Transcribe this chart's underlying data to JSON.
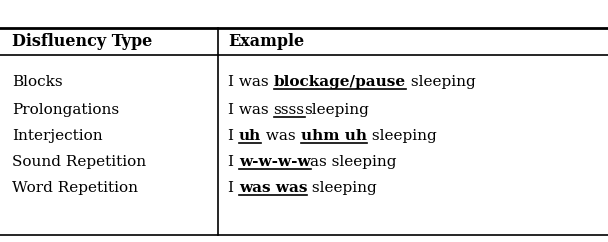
{
  "col1_header": "Disfluency Type",
  "col2_header": "Example",
  "rows": [
    {
      "type": "Blocks",
      "parts": [
        {
          "text": "I was ",
          "bold": false,
          "underline": false
        },
        {
          "text": "blockage/pause",
          "bold": true,
          "underline": true
        },
        {
          "text": " sleeping",
          "bold": false,
          "underline": false
        }
      ]
    },
    {
      "type": "Prolongations",
      "parts": [
        {
          "text": "I was ",
          "bold": false,
          "underline": false
        },
        {
          "text": "ssss",
          "bold": false,
          "underline": true
        },
        {
          "text": "sleeping",
          "bold": false,
          "underline": false
        }
      ]
    },
    {
      "type": "Interjection",
      "parts": [
        {
          "text": "I ",
          "bold": false,
          "underline": false
        },
        {
          "text": "uh",
          "bold": true,
          "underline": true
        },
        {
          "text": " was ",
          "bold": false,
          "underline": false
        },
        {
          "text": "uhm uh",
          "bold": true,
          "underline": true
        },
        {
          "text": " sleeping",
          "bold": false,
          "underline": false
        }
      ]
    },
    {
      "type": "Sound Repetition",
      "parts": [
        {
          "text": "I ",
          "bold": false,
          "underline": false
        },
        {
          "text": "w-w-w-w",
          "bold": true,
          "underline": true
        },
        {
          "text": "as sleeping",
          "bold": false,
          "underline": false
        }
      ]
    },
    {
      "type": "Word Repetition",
      "parts": [
        {
          "text": "I ",
          "bold": false,
          "underline": false
        },
        {
          "text": "was was",
          "bold": true,
          "underline": true
        },
        {
          "text": " sleeping",
          "bold": false,
          "underline": false
        }
      ]
    }
  ],
  "background_color": "#ffffff",
  "text_color": "#000000",
  "font_size": 11.0,
  "header_font_size": 11.5,
  "fig_width": 6.08,
  "fig_height": 2.42,
  "dpi": 100
}
